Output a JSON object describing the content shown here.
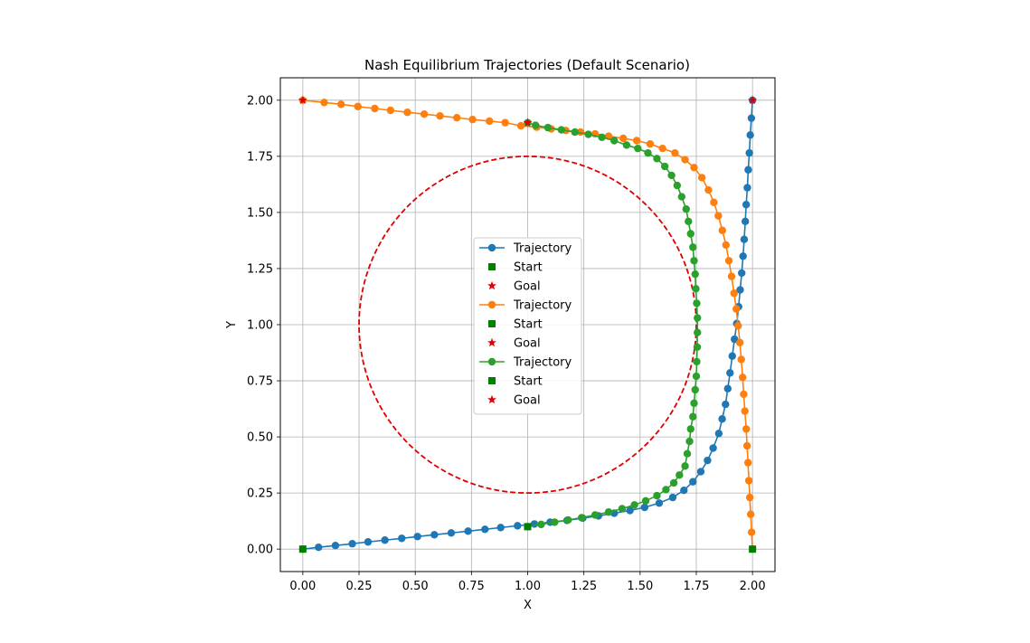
{
  "chart_data": {
    "type": "line",
    "title": "Nash Equilibrium Trajectories (Default Scenario)",
    "xlabel": "X",
    "ylabel": "Y",
    "xlim": [
      -0.1,
      2.1
    ],
    "ylim": [
      -0.1,
      2.1
    ],
    "xticks": [
      "0.00",
      "0.25",
      "0.50",
      "0.75",
      "1.00",
      "1.25",
      "1.50",
      "1.75",
      "2.00"
    ],
    "yticks": [
      "0.00",
      "0.25",
      "0.50",
      "0.75",
      "1.00",
      "1.25",
      "1.50",
      "1.75",
      "2.00"
    ],
    "grid": true,
    "legend_position": "center",
    "obstacle": {
      "center": [
        1.0,
        1.0
      ],
      "radius": 0.75,
      "color": "#e00000",
      "style": "dashed"
    },
    "series": [
      {
        "name": "Trajectory",
        "color": "#1f77b4",
        "start": [
          0.0,
          0.0
        ],
        "goal": [
          2.0,
          2.0
        ],
        "points": [
          [
            0.0,
            0.0
          ],
          [
            0.07,
            0.008
          ],
          [
            0.145,
            0.016
          ],
          [
            0.22,
            0.024
          ],
          [
            0.29,
            0.032
          ],
          [
            0.365,
            0.04
          ],
          [
            0.44,
            0.048
          ],
          [
            0.51,
            0.056
          ],
          [
            0.585,
            0.064
          ],
          [
            0.66,
            0.072
          ],
          [
            0.735,
            0.08
          ],
          [
            0.81,
            0.088
          ],
          [
            0.88,
            0.096
          ],
          [
            0.955,
            0.104
          ],
          [
            1.03,
            0.112
          ],
          [
            1.1,
            0.12
          ],
          [
            1.175,
            0.128
          ],
          [
            1.245,
            0.138
          ],
          [
            1.315,
            0.148
          ],
          [
            1.385,
            0.16
          ],
          [
            1.455,
            0.172
          ],
          [
            1.52,
            0.186
          ],
          [
            1.585,
            0.205
          ],
          [
            1.645,
            0.23
          ],
          [
            1.695,
            0.262
          ],
          [
            1.735,
            0.3
          ],
          [
            1.77,
            0.345
          ],
          [
            1.8,
            0.395
          ],
          [
            1.825,
            0.45
          ],
          [
            1.85,
            0.515
          ],
          [
            1.865,
            0.58
          ],
          [
            1.88,
            0.645
          ],
          [
            1.89,
            0.715
          ],
          [
            1.9,
            0.785
          ],
          [
            1.91,
            0.86
          ],
          [
            1.92,
            0.935
          ],
          [
            1.93,
            1.005
          ],
          [
            1.938,
            1.08
          ],
          [
            1.945,
            1.155
          ],
          [
            1.952,
            1.23
          ],
          [
            1.958,
            1.305
          ],
          [
            1.963,
            1.38
          ],
          [
            1.968,
            1.46
          ],
          [
            1.972,
            1.535
          ],
          [
            1.977,
            1.61
          ],
          [
            1.981,
            1.69
          ],
          [
            1.986,
            1.765
          ],
          [
            1.99,
            1.845
          ],
          [
            1.995,
            1.92
          ],
          [
            2.0,
            2.0
          ]
        ]
      },
      {
        "name": "Trajectory",
        "color": "#ff7f0e",
        "start": [
          2.0,
          0.0
        ],
        "goal": [
          0.0,
          2.0
        ],
        "points": [
          [
            2.0,
            0.0
          ],
          [
            1.996,
            0.075
          ],
          [
            1.992,
            0.155
          ],
          [
            1.988,
            0.23
          ],
          [
            1.984,
            0.305
          ],
          [
            1.98,
            0.385
          ],
          [
            1.976,
            0.46
          ],
          [
            1.972,
            0.535
          ],
          [
            1.966,
            0.615
          ],
          [
            1.961,
            0.69
          ],
          [
            1.956,
            0.765
          ],
          [
            1.95,
            0.845
          ],
          [
            1.944,
            0.92
          ],
          [
            1.936,
            0.995
          ],
          [
            1.928,
            1.07
          ],
          [
            1.918,
            1.14
          ],
          [
            1.907,
            1.215
          ],
          [
            1.895,
            1.285
          ],
          [
            1.882,
            1.355
          ],
          [
            1.866,
            1.42
          ],
          [
            1.848,
            1.485
          ],
          [
            1.828,
            1.545
          ],
          [
            1.804,
            1.6
          ],
          [
            1.775,
            1.655
          ],
          [
            1.74,
            1.7
          ],
          [
            1.7,
            1.735
          ],
          [
            1.655,
            1.765
          ],
          [
            1.6,
            1.785
          ],
          [
            1.545,
            1.805
          ],
          [
            1.485,
            1.82
          ],
          [
            1.425,
            1.83
          ],
          [
            1.36,
            1.84
          ],
          [
            1.3,
            1.85
          ],
          [
            1.235,
            1.858
          ],
          [
            1.17,
            1.865
          ],
          [
            1.105,
            1.872
          ],
          [
            1.04,
            1.88
          ],
          [
            0.97,
            1.886
          ],
          [
            0.9,
            1.9
          ],
          [
            0.83,
            1.907
          ],
          [
            0.755,
            1.914
          ],
          [
            0.685,
            1.922
          ],
          [
            0.61,
            1.93
          ],
          [
            0.54,
            1.938
          ],
          [
            0.465,
            1.946
          ],
          [
            0.39,
            1.955
          ],
          [
            0.32,
            1.963
          ],
          [
            0.245,
            1.972
          ],
          [
            0.17,
            1.982
          ],
          [
            0.095,
            1.99
          ],
          [
            0.0,
            2.0
          ]
        ]
      },
      {
        "name": "Trajectory",
        "color": "#2ca02c",
        "start": [
          1.0,
          0.1
        ],
        "goal": [
          1.0,
          1.9
        ],
        "points": [
          [
            1.0,
            0.1
          ],
          [
            1.06,
            0.11
          ],
          [
            1.12,
            0.12
          ],
          [
            1.18,
            0.13
          ],
          [
            1.24,
            0.14
          ],
          [
            1.3,
            0.152
          ],
          [
            1.36,
            0.165
          ],
          [
            1.42,
            0.18
          ],
          [
            1.475,
            0.197
          ],
          [
            1.525,
            0.215
          ],
          [
            1.575,
            0.238
          ],
          [
            1.615,
            0.265
          ],
          [
            1.65,
            0.295
          ],
          [
            1.675,
            0.33
          ],
          [
            1.7,
            0.37
          ],
          [
            1.71,
            0.425
          ],
          [
            1.72,
            0.48
          ],
          [
            1.725,
            0.535
          ],
          [
            1.735,
            0.59
          ],
          [
            1.74,
            0.65
          ],
          [
            1.745,
            0.71
          ],
          [
            1.75,
            0.77
          ],
          [
            1.752,
            0.835
          ],
          [
            1.754,
            0.9
          ],
          [
            1.755,
            0.965
          ],
          [
            1.755,
            1.03
          ],
          [
            1.752,
            1.095
          ],
          [
            1.748,
            1.16
          ],
          [
            1.745,
            1.225
          ],
          [
            1.74,
            1.285
          ],
          [
            1.735,
            1.345
          ],
          [
            1.725,
            1.405
          ],
          [
            1.715,
            1.46
          ],
          [
            1.705,
            1.515
          ],
          [
            1.685,
            1.57
          ],
          [
            1.665,
            1.62
          ],
          [
            1.64,
            1.665
          ],
          [
            1.61,
            1.705
          ],
          [
            1.575,
            1.74
          ],
          [
            1.535,
            1.765
          ],
          [
            1.49,
            1.785
          ],
          [
            1.44,
            1.8
          ],
          [
            1.385,
            1.82
          ],
          [
            1.33,
            1.835
          ],
          [
            1.27,
            1.848
          ],
          [
            1.21,
            1.858
          ],
          [
            1.15,
            1.868
          ],
          [
            1.09,
            1.878
          ],
          [
            1.035,
            1.888
          ],
          [
            1.0,
            1.9
          ]
        ]
      }
    ],
    "legend": [
      {
        "label": "Trajectory",
        "kind": "line",
        "color": "#1f77b4"
      },
      {
        "label": "Start",
        "kind": "square",
        "color": "#008000"
      },
      {
        "label": "Goal",
        "kind": "star",
        "color": "#e00000"
      },
      {
        "label": "Trajectory",
        "kind": "line",
        "color": "#ff7f0e"
      },
      {
        "label": "Start",
        "kind": "square",
        "color": "#008000"
      },
      {
        "label": "Goal",
        "kind": "star",
        "color": "#e00000"
      },
      {
        "label": "Trajectory",
        "kind": "line",
        "color": "#2ca02c"
      },
      {
        "label": "Start",
        "kind": "square",
        "color": "#008000"
      },
      {
        "label": "Goal",
        "kind": "star",
        "color": "#e00000"
      }
    ]
  }
}
